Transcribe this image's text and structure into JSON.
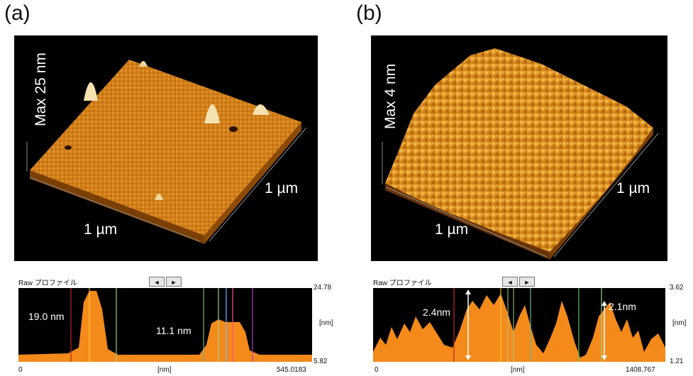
{
  "panel_a": {
    "label": "(a)",
    "max_label": "Max 25 nm",
    "x_dim": "1 µm",
    "y_dim": "1 µm",
    "profile": {
      "header": "Raw プロファイル",
      "nav_left": "◄",
      "nav_right": "►",
      "y_max": "24.78",
      "y_min": "5.82",
      "y_unit": "[nm]",
      "x_start": "0",
      "x_unit": "[nm]",
      "x_end": "545.0183",
      "peak1": "19.0 nm",
      "peak2": "11.1 nm"
    }
  },
  "panel_b": {
    "label": "(b)",
    "max_label": "Max 4 nm",
    "x_dim": "1 µm",
    "y_dim": "1 µm",
    "profile": {
      "header": "Raw プロファイル",
      "nav_left": "◄",
      "nav_right": "►",
      "y_max": "3.62",
      "y_min": "1.21",
      "y_unit": "[nm]",
      "x_start": "0",
      "x_unit": "[nm]",
      "x_end": "1408.767",
      "h1": "2.4nm",
      "h2": "2.1nm"
    }
  },
  "colors": {
    "surface": "#d98a1c",
    "profile_fill": "#f48a1a",
    "background": "#000000"
  }
}
